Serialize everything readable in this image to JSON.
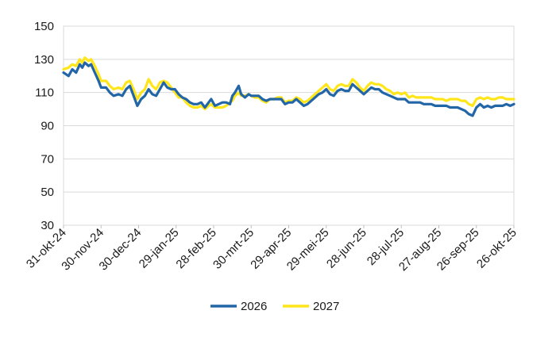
{
  "chart_data": {
    "type": "line",
    "title": "",
    "xlabel": "",
    "ylabel": "",
    "ylim": [
      30,
      150
    ],
    "y_ticks": [
      30,
      50,
      70,
      90,
      110,
      130,
      150
    ],
    "grid": "horizontal",
    "legend_position": "bottom",
    "x_tick_labels": [
      "31-okt-24",
      "30-nov-24",
      "30-dec-24",
      "29-jan-25",
      "28-feb-25",
      "30-mrt-25",
      "29-apr-25",
      "29-mei-25",
      "28-jun-25",
      "28-jul-25",
      "27-aug-25",
      "26-sep-25",
      "26-okt-25"
    ],
    "x_day_range": [
      0,
      360
    ],
    "series": [
      {
        "name": "2026",
        "color": "#2366a8",
        "points": [
          [
            0,
            122
          ],
          [
            4,
            120
          ],
          [
            7,
            124
          ],
          [
            10,
            122
          ],
          [
            13,
            127
          ],
          [
            15,
            125
          ],
          [
            17,
            128
          ],
          [
            20,
            126
          ],
          [
            22,
            127
          ],
          [
            25,
            122
          ],
          [
            28,
            117
          ],
          [
            30,
            113
          ],
          [
            34,
            113
          ],
          [
            37,
            110
          ],
          [
            40,
            108
          ],
          [
            44,
            109
          ],
          [
            47,
            108
          ],
          [
            50,
            112
          ],
          [
            53,
            114
          ],
          [
            56,
            108
          ],
          [
            59,
            102
          ],
          [
            62,
            106
          ],
          [
            65,
            108
          ],
          [
            68,
            112
          ],
          [
            71,
            109
          ],
          [
            74,
            108
          ],
          [
            77,
            112
          ],
          [
            80,
            116
          ],
          [
            83,
            113
          ],
          [
            86,
            112
          ],
          [
            89,
            112
          ],
          [
            92,
            109
          ],
          [
            95,
            107
          ],
          [
            98,
            106
          ],
          [
            101,
            104
          ],
          [
            104,
            103
          ],
          [
            107,
            103
          ],
          [
            110,
            104
          ],
          [
            113,
            101
          ],
          [
            116,
            104
          ],
          [
            118,
            106
          ],
          [
            121,
            102
          ],
          [
            124,
            103
          ],
          [
            127,
            104
          ],
          [
            130,
            104
          ],
          [
            133,
            103
          ],
          [
            135,
            108
          ],
          [
            137,
            110
          ],
          [
            140,
            114
          ],
          [
            142,
            109
          ],
          [
            145,
            107
          ],
          [
            148,
            109
          ],
          [
            150,
            108
          ],
          [
            153,
            108
          ],
          [
            156,
            108
          ],
          [
            159,
            106
          ],
          [
            162,
            105
          ],
          [
            165,
            106
          ],
          [
            168,
            106
          ],
          [
            171,
            106
          ],
          [
            174,
            106
          ],
          [
            177,
            103
          ],
          [
            180,
            104
          ],
          [
            183,
            104
          ],
          [
            186,
            106
          ],
          [
            189,
            104
          ],
          [
            192,
            102
          ],
          [
            195,
            103
          ],
          [
            198,
            105
          ],
          [
            201,
            107
          ],
          [
            204,
            109
          ],
          [
            207,
            110
          ],
          [
            210,
            112
          ],
          [
            213,
            109
          ],
          [
            216,
            108
          ],
          [
            219,
            111
          ],
          [
            222,
            112
          ],
          [
            225,
            111
          ],
          [
            228,
            111
          ],
          [
            231,
            115
          ],
          [
            234,
            113
          ],
          [
            237,
            111
          ],
          [
            240,
            109
          ],
          [
            243,
            111
          ],
          [
            246,
            113
          ],
          [
            249,
            112
          ],
          [
            252,
            112
          ],
          [
            255,
            110
          ],
          [
            258,
            109
          ],
          [
            261,
            108
          ],
          [
            264,
            107
          ],
          [
            267,
            106
          ],
          [
            270,
            106
          ],
          [
            273,
            106
          ],
          [
            276,
            104
          ],
          [
            279,
            104
          ],
          [
            282,
            104
          ],
          [
            285,
            104
          ],
          [
            288,
            103
          ],
          [
            291,
            103
          ],
          [
            294,
            103
          ],
          [
            297,
            102
          ],
          [
            300,
            102
          ],
          [
            303,
            102
          ],
          [
            306,
            102
          ],
          [
            309,
            101
          ],
          [
            312,
            101
          ],
          [
            315,
            101
          ],
          [
            318,
            100
          ],
          [
            321,
            99
          ],
          [
            324,
            97
          ],
          [
            327,
            96
          ],
          [
            330,
            101
          ],
          [
            333,
            103
          ],
          [
            336,
            101
          ],
          [
            339,
            102
          ],
          [
            342,
            101
          ],
          [
            345,
            102
          ],
          [
            348,
            102
          ],
          [
            351,
            102
          ],
          [
            354,
            103
          ],
          [
            357,
            102
          ],
          [
            360,
            103
          ]
        ]
      },
      {
        "name": "2027",
        "color": "#ffe61a",
        "points": [
          [
            0,
            124
          ],
          [
            4,
            125
          ],
          [
            7,
            127
          ],
          [
            10,
            126
          ],
          [
            13,
            130
          ],
          [
            15,
            128
          ],
          [
            17,
            131
          ],
          [
            20,
            129
          ],
          [
            22,
            130
          ],
          [
            25,
            126
          ],
          [
            28,
            121
          ],
          [
            30,
            117
          ],
          [
            34,
            117
          ],
          [
            37,
            114
          ],
          [
            40,
            112
          ],
          [
            44,
            113
          ],
          [
            47,
            112
          ],
          [
            50,
            116
          ],
          [
            53,
            117
          ],
          [
            56,
            112
          ],
          [
            59,
            106
          ],
          [
            62,
            110
          ],
          [
            65,
            112
          ],
          [
            68,
            118
          ],
          [
            71,
            114
          ],
          [
            74,
            112
          ],
          [
            77,
            116
          ],
          [
            80,
            117
          ],
          [
            83,
            116
          ],
          [
            86,
            113
          ],
          [
            89,
            110
          ],
          [
            92,
            107
          ],
          [
            95,
            107
          ],
          [
            98,
            104
          ],
          [
            101,
            102
          ],
          [
            104,
            101
          ],
          [
            107,
            101
          ],
          [
            110,
            102
          ],
          [
            113,
            100
          ],
          [
            116,
            102
          ],
          [
            118,
            103
          ],
          [
            121,
            101
          ],
          [
            124,
            101
          ],
          [
            127,
            101
          ],
          [
            130,
            102
          ],
          [
            133,
            104
          ],
          [
            135,
            105
          ],
          [
            137,
            108
          ],
          [
            140,
            110
          ],
          [
            142,
            108
          ],
          [
            145,
            108
          ],
          [
            148,
            109
          ],
          [
            150,
            108
          ],
          [
            153,
            107
          ],
          [
            156,
            107
          ],
          [
            159,
            105
          ],
          [
            162,
            104
          ],
          [
            165,
            106
          ],
          [
            168,
            106
          ],
          [
            171,
            107
          ],
          [
            174,
            107
          ],
          [
            177,
            104
          ],
          [
            180,
            105
          ],
          [
            183,
            105
          ],
          [
            186,
            107
          ],
          [
            189,
            106
          ],
          [
            192,
            104
          ],
          [
            195,
            105
          ],
          [
            198,
            107
          ],
          [
            201,
            109
          ],
          [
            204,
            111
          ],
          [
            207,
            113
          ],
          [
            210,
            115
          ],
          [
            213,
            112
          ],
          [
            216,
            111
          ],
          [
            219,
            114
          ],
          [
            222,
            115
          ],
          [
            225,
            114
          ],
          [
            228,
            114
          ],
          [
            231,
            118
          ],
          [
            234,
            116
          ],
          [
            237,
            113
          ],
          [
            240,
            111
          ],
          [
            243,
            114
          ],
          [
            246,
            116
          ],
          [
            249,
            115
          ],
          [
            252,
            115
          ],
          [
            255,
            114
          ],
          [
            258,
            112
          ],
          [
            261,
            111
          ],
          [
            264,
            109
          ],
          [
            267,
            110
          ],
          [
            270,
            109
          ],
          [
            273,
            110
          ],
          [
            276,
            107
          ],
          [
            279,
            108
          ],
          [
            282,
            107
          ],
          [
            285,
            107
          ],
          [
            288,
            107
          ],
          [
            291,
            107
          ],
          [
            294,
            107
          ],
          [
            297,
            106
          ],
          [
            300,
            106
          ],
          [
            303,
            106
          ],
          [
            306,
            105
          ],
          [
            309,
            106
          ],
          [
            312,
            106
          ],
          [
            315,
            106
          ],
          [
            318,
            105
          ],
          [
            321,
            105
          ],
          [
            324,
            103
          ],
          [
            327,
            102
          ],
          [
            330,
            106
          ],
          [
            333,
            107
          ],
          [
            336,
            106
          ],
          [
            339,
            107
          ],
          [
            342,
            106
          ],
          [
            345,
            106
          ],
          [
            348,
            107
          ],
          [
            351,
            107
          ],
          [
            354,
            106
          ],
          [
            357,
            106
          ],
          [
            360,
            106
          ]
        ]
      }
    ]
  }
}
